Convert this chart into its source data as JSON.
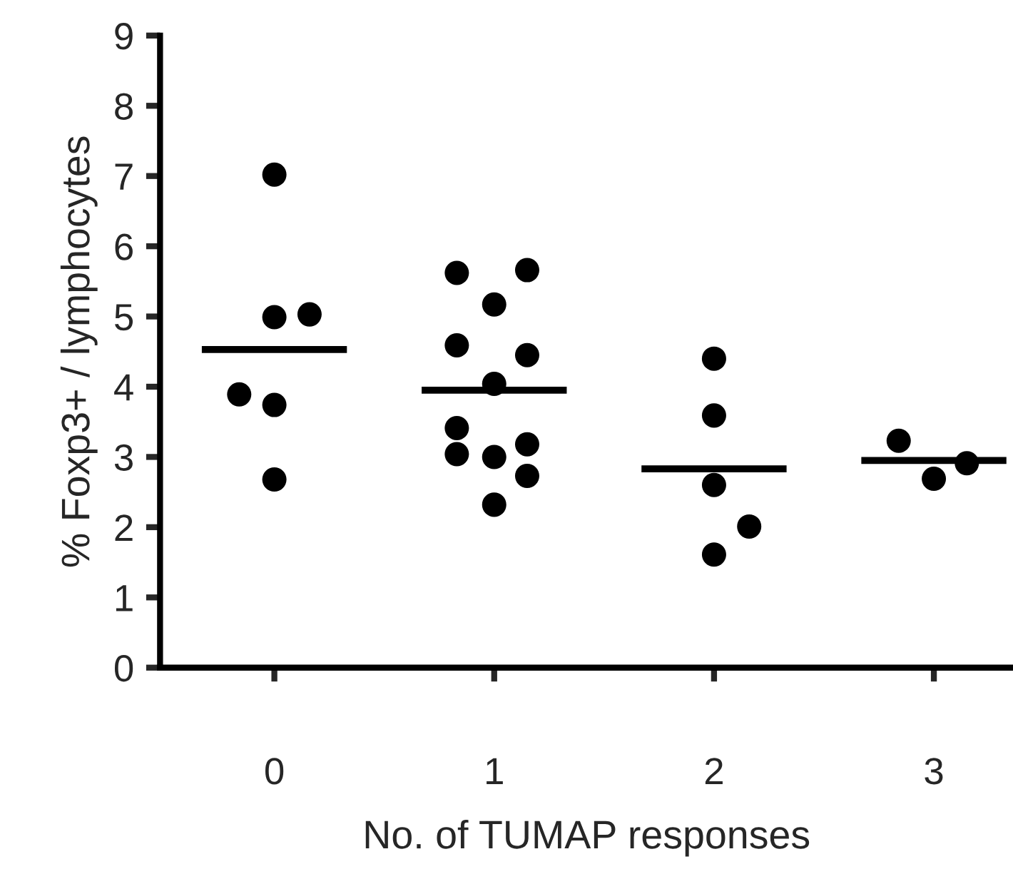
{
  "chart_data": {
    "type": "scatter",
    "xlabel": "No. of TUMAP responses",
    "ylabel": "% Foxp3+ / lymphocytes",
    "xlim": [
      -0.52,
      3.36
    ],
    "xticks": [
      0,
      1,
      2,
      3
    ],
    "ylim": [
      0,
      9
    ],
    "yticks": [
      0,
      1,
      2,
      3,
      4,
      5,
      6,
      7,
      8,
      9
    ],
    "grid": false,
    "series": [
      {
        "color": "#000000",
        "marker": "circle",
        "x": [
          0,
          0,
          0.16,
          -0.16,
          0,
          0,
          0.83,
          1.15,
          1,
          0.83,
          1.15,
          1,
          0.83,
          0.83,
          1,
          1.15,
          1.15,
          1,
          2,
          2,
          2,
          2.16,
          2,
          2.84,
          3.15,
          3
        ],
        "values": [
          7.02,
          4.99,
          5.03,
          3.89,
          3.74,
          2.68,
          5.62,
          5.66,
          5.17,
          4.59,
          4.45,
          4.04,
          3.41,
          3.04,
          3.0,
          3.18,
          2.73,
          2.32,
          4.4,
          3.59,
          2.6,
          2.01,
          1.61,
          3.23,
          2.91,
          2.69
        ]
      },
      {
        "type": "line",
        "color": "#000000",
        "marker": "none",
        "line_style": "solid",
        "x": [
          -0.33,
          0.33,
          null,
          0.67,
          1.33,
          null,
          1.67,
          2.33,
          null,
          2.67,
          3.33
        ],
        "values": [
          4.53,
          4.53,
          null,
          3.95,
          3.95,
          null,
          2.83,
          2.83,
          null,
          2.95,
          2.95
        ]
      }
    ]
  }
}
